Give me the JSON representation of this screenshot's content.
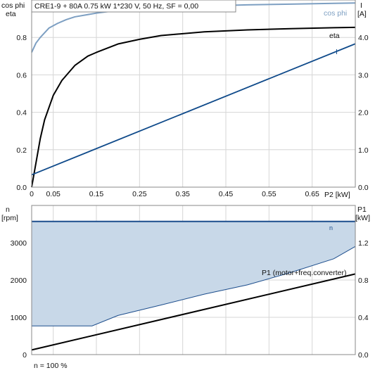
{
  "colors": {
    "cosphi": "#7d9fc2",
    "eta": "#000000",
    "current": "#0f4a8a",
    "speed_line": "#1c4d8c",
    "speed_fill": "#c8d8e8",
    "p1": "#000000"
  },
  "header": {
    "title": "CRE1-9 + 80A   0.75 kW   1*230 V, 50 Hz, SF = 0,00"
  },
  "footer": {
    "note": "n = 100 %"
  },
  "chart_data": [
    {
      "type": "line",
      "id": "top",
      "title": "CRE1-9 + 80A   0.75 kW   1*230 V, 50 Hz, SF = 0,00",
      "xlabel": "P2 [kW]",
      "ylabel_left_line1": "cos phi",
      "ylabel_left_line2": "eta",
      "ylabel_right_line1": "I",
      "ylabel_right_line2": "[A]",
      "xlim": [
        0,
        0.75
      ],
      "ylim_left": [
        0,
        1.0
      ],
      "ylim_right": [
        0,
        5.0
      ],
      "x_ticks": [
        "0",
        "0.05",
        "0.15",
        "0.25",
        "0.35",
        "0.45",
        "0.55",
        "0.65"
      ],
      "x_tick_values": [
        0,
        0.05,
        0.15,
        0.25,
        0.35,
        0.45,
        0.55,
        0.65
      ],
      "y_left_ticks": [
        "0.0",
        "0.2",
        "0.4",
        "0.6",
        "0.8"
      ],
      "y_left_tick_values": [
        0,
        0.2,
        0.4,
        0.6,
        0.8
      ],
      "y_right_ticks": [
        "0.0",
        "1.0",
        "2.0",
        "3.0",
        "4.0"
      ],
      "y_right_tick_values": [
        0,
        1,
        2,
        3,
        4
      ],
      "grid": true,
      "series": [
        {
          "name": "cos phi",
          "axis": "left",
          "x": [
            0,
            0.01,
            0.02,
            0.04,
            0.06,
            0.08,
            0.1,
            0.15,
            0.2,
            0.3,
            0.4,
            0.5,
            0.6,
            0.7,
            0.75
          ],
          "y": [
            0.72,
            0.77,
            0.8,
            0.85,
            0.875,
            0.895,
            0.91,
            0.93,
            0.945,
            0.96,
            0.968,
            0.974,
            0.978,
            0.982,
            0.984
          ]
        },
        {
          "name": "eta",
          "axis": "left",
          "x": [
            0,
            0.01,
            0.02,
            0.03,
            0.05,
            0.07,
            0.1,
            0.13,
            0.15,
            0.2,
            0.25,
            0.3,
            0.4,
            0.5,
            0.6,
            0.7,
            0.75
          ],
          "y": [
            0.0,
            0.13,
            0.26,
            0.36,
            0.49,
            0.57,
            0.65,
            0.7,
            0.72,
            0.765,
            0.79,
            0.81,
            0.83,
            0.84,
            0.847,
            0.852,
            0.854
          ]
        },
        {
          "name": "I",
          "axis": "right",
          "x": [
            0,
            0.75
          ],
          "y": [
            0.33,
            3.83
          ]
        }
      ]
    },
    {
      "type": "area",
      "id": "bottom",
      "xlabel": "",
      "ylabel_left_line1": "n",
      "ylabel_left_line2": "[rpm]",
      "ylabel_right_line1": "P1",
      "ylabel_right_line2": "[kW]",
      "xlim": [
        0,
        0.75
      ],
      "ylim_left": [
        0,
        4000
      ],
      "ylim_right": [
        0,
        1.6
      ],
      "y_left_ticks": [
        "0",
        "1000",
        "2000",
        "3000"
      ],
      "y_left_tick_values": [
        0,
        1000,
        2000,
        3000
      ],
      "y_right_ticks": [
        "0.0",
        "0.4",
        "0.8",
        "1.2"
      ],
      "y_right_tick_values": [
        0,
        0.4,
        0.8,
        1.2
      ],
      "grid": true,
      "series": [
        {
          "name": "n",
          "axis": "left",
          "label": "n",
          "upper_x": [
            0,
            0.75
          ],
          "upper_y": [
            3570,
            3570
          ],
          "lower_x": [
            0,
            0.14,
            0.2,
            0.3,
            0.4,
            0.5,
            0.6,
            0.7,
            0.75
          ],
          "lower_y": [
            770,
            770,
            1050,
            1330,
            1620,
            1870,
            2200,
            2570,
            2900
          ]
        },
        {
          "name": "P1 (motor+freq.converter)",
          "axis": "right",
          "label": "P1 (motor+freq.converter)",
          "x": [
            0,
            0.75
          ],
          "y": [
            0.05,
            0.865
          ]
        }
      ]
    }
  ]
}
